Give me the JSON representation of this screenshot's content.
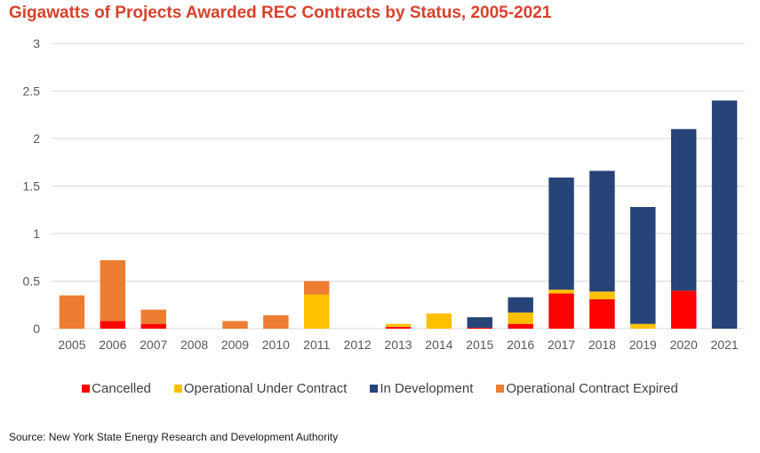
{
  "chart_data": {
    "type": "bar",
    "stacked": true,
    "title": "Gigawatts of Projects Awarded REC Contracts by Status, 2005-2021",
    "xlabel": "",
    "ylabel": "",
    "ylim": [
      0,
      3
    ],
    "yticks": [
      "0",
      "0.5",
      "1",
      "1.5",
      "2",
      "2.5",
      "3"
    ],
    "ytick_values": [
      0,
      0.5,
      1,
      1.5,
      2,
      2.5,
      3
    ],
    "grid": true,
    "legend_position": "bottom",
    "categories": [
      "2005",
      "2006",
      "2007",
      "2008",
      "2009",
      "2010",
      "2011",
      "2012",
      "2013",
      "2014",
      "2015",
      "2016",
      "2017",
      "2018",
      "2019",
      "2020",
      "2021"
    ],
    "series": [
      {
        "name": "Cancelled",
        "color": "#ff0000",
        "values": [
          0,
          0.08,
          0.05,
          0,
          0,
          0,
          0,
          0,
          0.02,
          0,
          0.01,
          0.05,
          0.37,
          0.31,
          0,
          0.4,
          0
        ]
      },
      {
        "name": "Operational Under Contract",
        "color": "#ffc000",
        "values": [
          0,
          0,
          0,
          0,
          0,
          0,
          0.36,
          0,
          0.03,
          0.16,
          0,
          0.12,
          0.04,
          0.08,
          0.05,
          0,
          0
        ]
      },
      {
        "name": "In Development",
        "color": "#264478",
        "values": [
          0,
          0,
          0,
          0,
          0,
          0,
          0,
          0,
          0,
          0,
          0.11,
          0.16,
          1.18,
          1.27,
          1.23,
          1.7,
          2.4
        ]
      },
      {
        "name": "Operational Contract Expired",
        "color": "#ed7d31",
        "values": [
          0.35,
          0.64,
          0.15,
          0,
          0.08,
          0.14,
          0.14,
          0,
          0,
          0,
          0,
          0,
          0,
          0,
          0,
          0,
          0
        ]
      }
    ]
  },
  "legend": [
    {
      "label": "Cancelled",
      "color": "#ff0000"
    },
    {
      "label": "Operational Under Contract",
      "color": "#ffc000"
    },
    {
      "label": "In Development",
      "color": "#264478"
    },
    {
      "label": "Operational Contract Expired",
      "color": "#ed7d31"
    }
  ],
  "source": "Source: New York State Energy Research and Development Authority",
  "colors": {
    "title": "#d9412b",
    "gridline": "#d9d9d9",
    "tick_text": "#595959"
  }
}
